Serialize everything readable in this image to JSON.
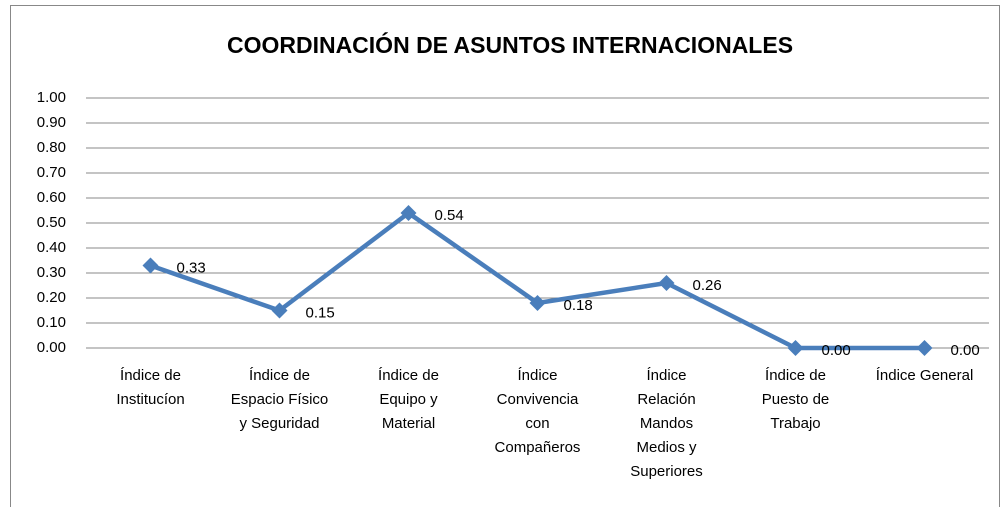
{
  "chart_data": {
    "type": "line",
    "title": "COORDINACIÓN DE ASUNTOS INTERNACIONALES",
    "categories": [
      "Índice de\nInstitucíon",
      "Índice de\nEspacio Físico\ny Seguridad",
      "Índice de\nEquipo y\nMaterial",
      "Índice\nConvivencia\ncon\nCompañeros",
      "Índice\nRelación\nMandos\nMedios y\nSuperiores",
      "Índice de\nPuesto  de\nTrabajo",
      "Índice General"
    ],
    "values": [
      0.33,
      0.15,
      0.54,
      0.18,
      0.26,
      0,
      0
    ],
    "value_labels": [
      "0.33",
      "0.15",
      "0.54",
      "0.18",
      "0.26",
      "0.00",
      "0.00"
    ],
    "color": "#4a7ebb",
    "ylim": [
      0,
      1
    ],
    "yticks": [
      {
        "value": 0,
        "label": "0.00"
      },
      {
        "value": 0.1,
        "label": "0.10"
      },
      {
        "value": 0.2,
        "label": "0.20"
      },
      {
        "value": 0.3,
        "label": "0.30"
      },
      {
        "value": 0.4,
        "label": "0.40"
      },
      {
        "value": 0.5,
        "label": "0.50"
      },
      {
        "value": 0.6,
        "label": "0.60"
      },
      {
        "value": 0.7,
        "label": "0.70"
      },
      {
        "value": 0.8,
        "label": "0.80"
      },
      {
        "value": 0.9,
        "label": "0.90"
      },
      {
        "value": 1,
        "label": "1.00"
      }
    ],
    "grid": true
  }
}
